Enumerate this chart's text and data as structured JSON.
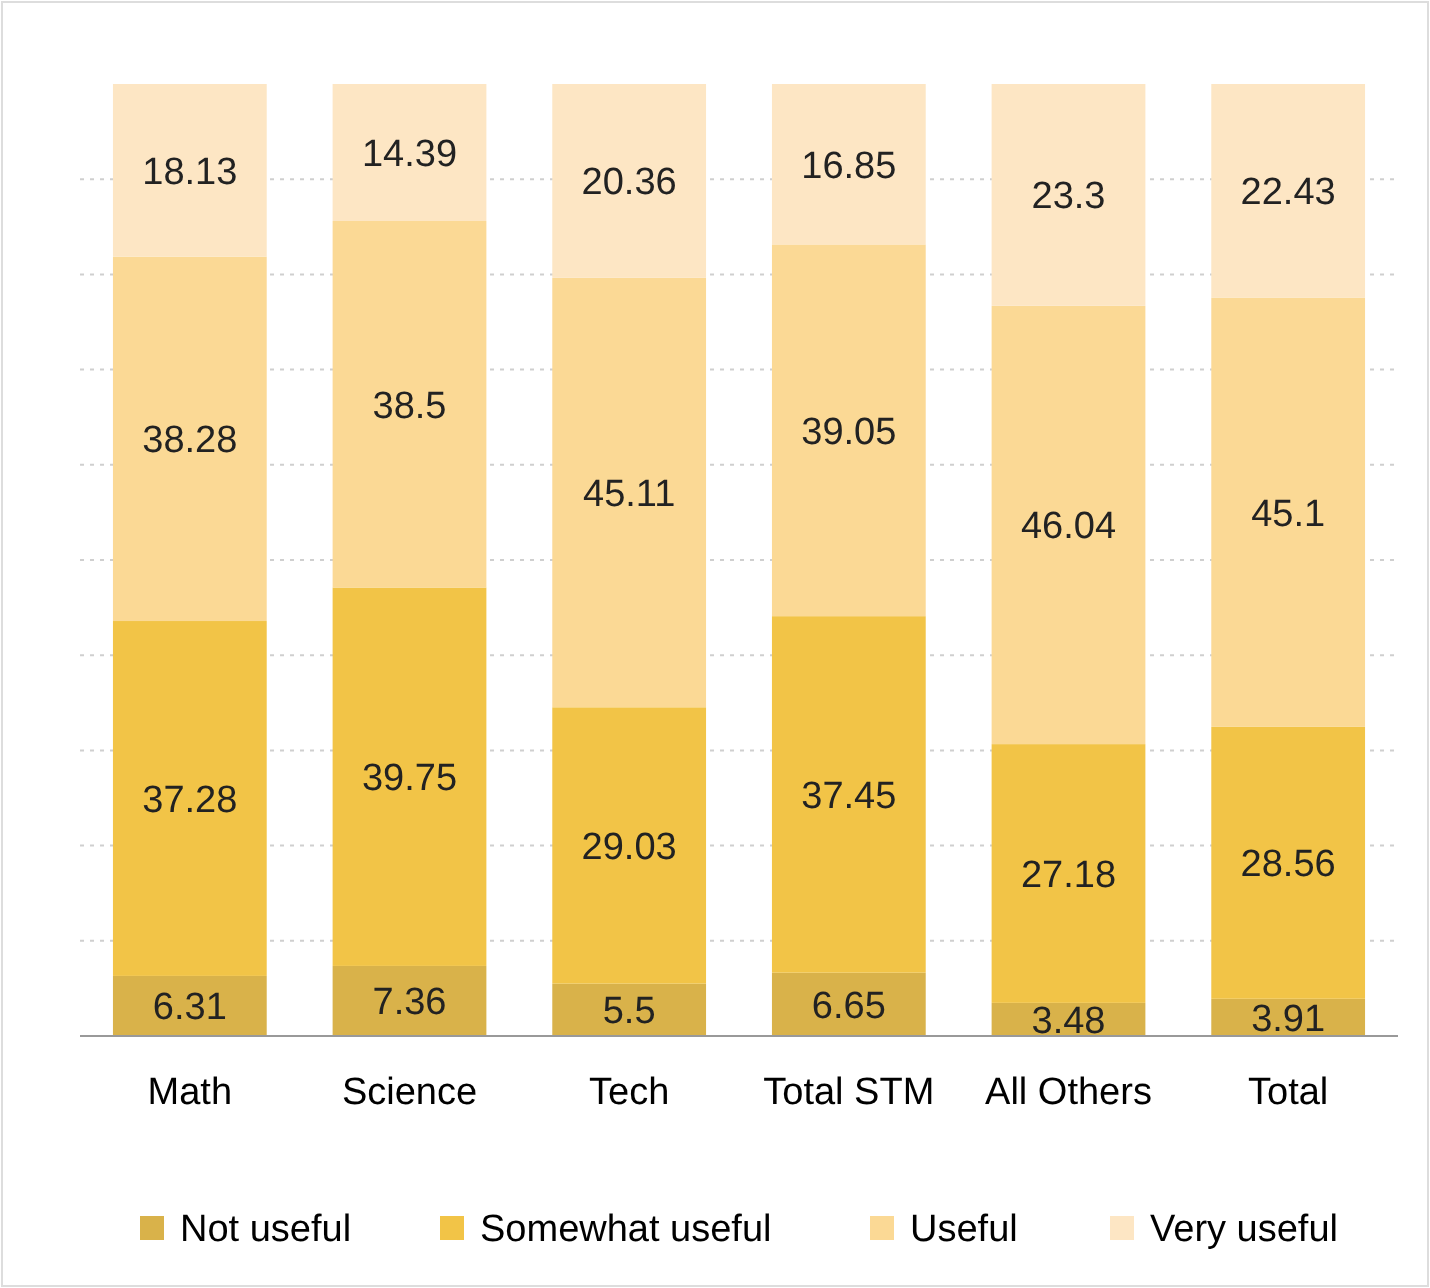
{
  "chart_data": {
    "type": "bar",
    "stacked": true,
    "categories": [
      "Math",
      "Science",
      "Tech",
      "Total STM",
      "All Others",
      "Total"
    ],
    "series": [
      {
        "name": "Not useful",
        "color": "#d9b24a",
        "values": [
          6.31,
          7.36,
          5.5,
          6.65,
          3.48,
          3.91
        ]
      },
      {
        "name": "Somewhat useful",
        "color": "#f2c447",
        "values": [
          37.28,
          39.75,
          29.03,
          37.45,
          27.18,
          28.56
        ]
      },
      {
        "name": "Useful",
        "color": "#fbd995",
        "values": [
          38.28,
          38.5,
          45.11,
          39.05,
          46.04,
          45.1
        ]
      },
      {
        "name": "Very useful",
        "color": "#fde6c4",
        "values": [
          18.13,
          14.39,
          20.36,
          16.85,
          23.3,
          22.43
        ]
      }
    ],
    "ylim": [
      0,
      100
    ],
    "yticks": [
      {
        "value": 10,
        "label": null
      },
      {
        "value": 20,
        "label": null
      },
      {
        "value": 30,
        "label": null
      },
      {
        "value": 40,
        "label": null
      },
      {
        "value": 50,
        "label": null
      },
      {
        "value": 60,
        "label": null
      },
      {
        "value": 70,
        "label": null
      },
      {
        "value": 80,
        "label": null
      },
      {
        "value": 90,
        "label": null
      }
    ],
    "tick_labels": "x",
    "grid": "y",
    "data_labels": true,
    "legend": "bottom"
  }
}
